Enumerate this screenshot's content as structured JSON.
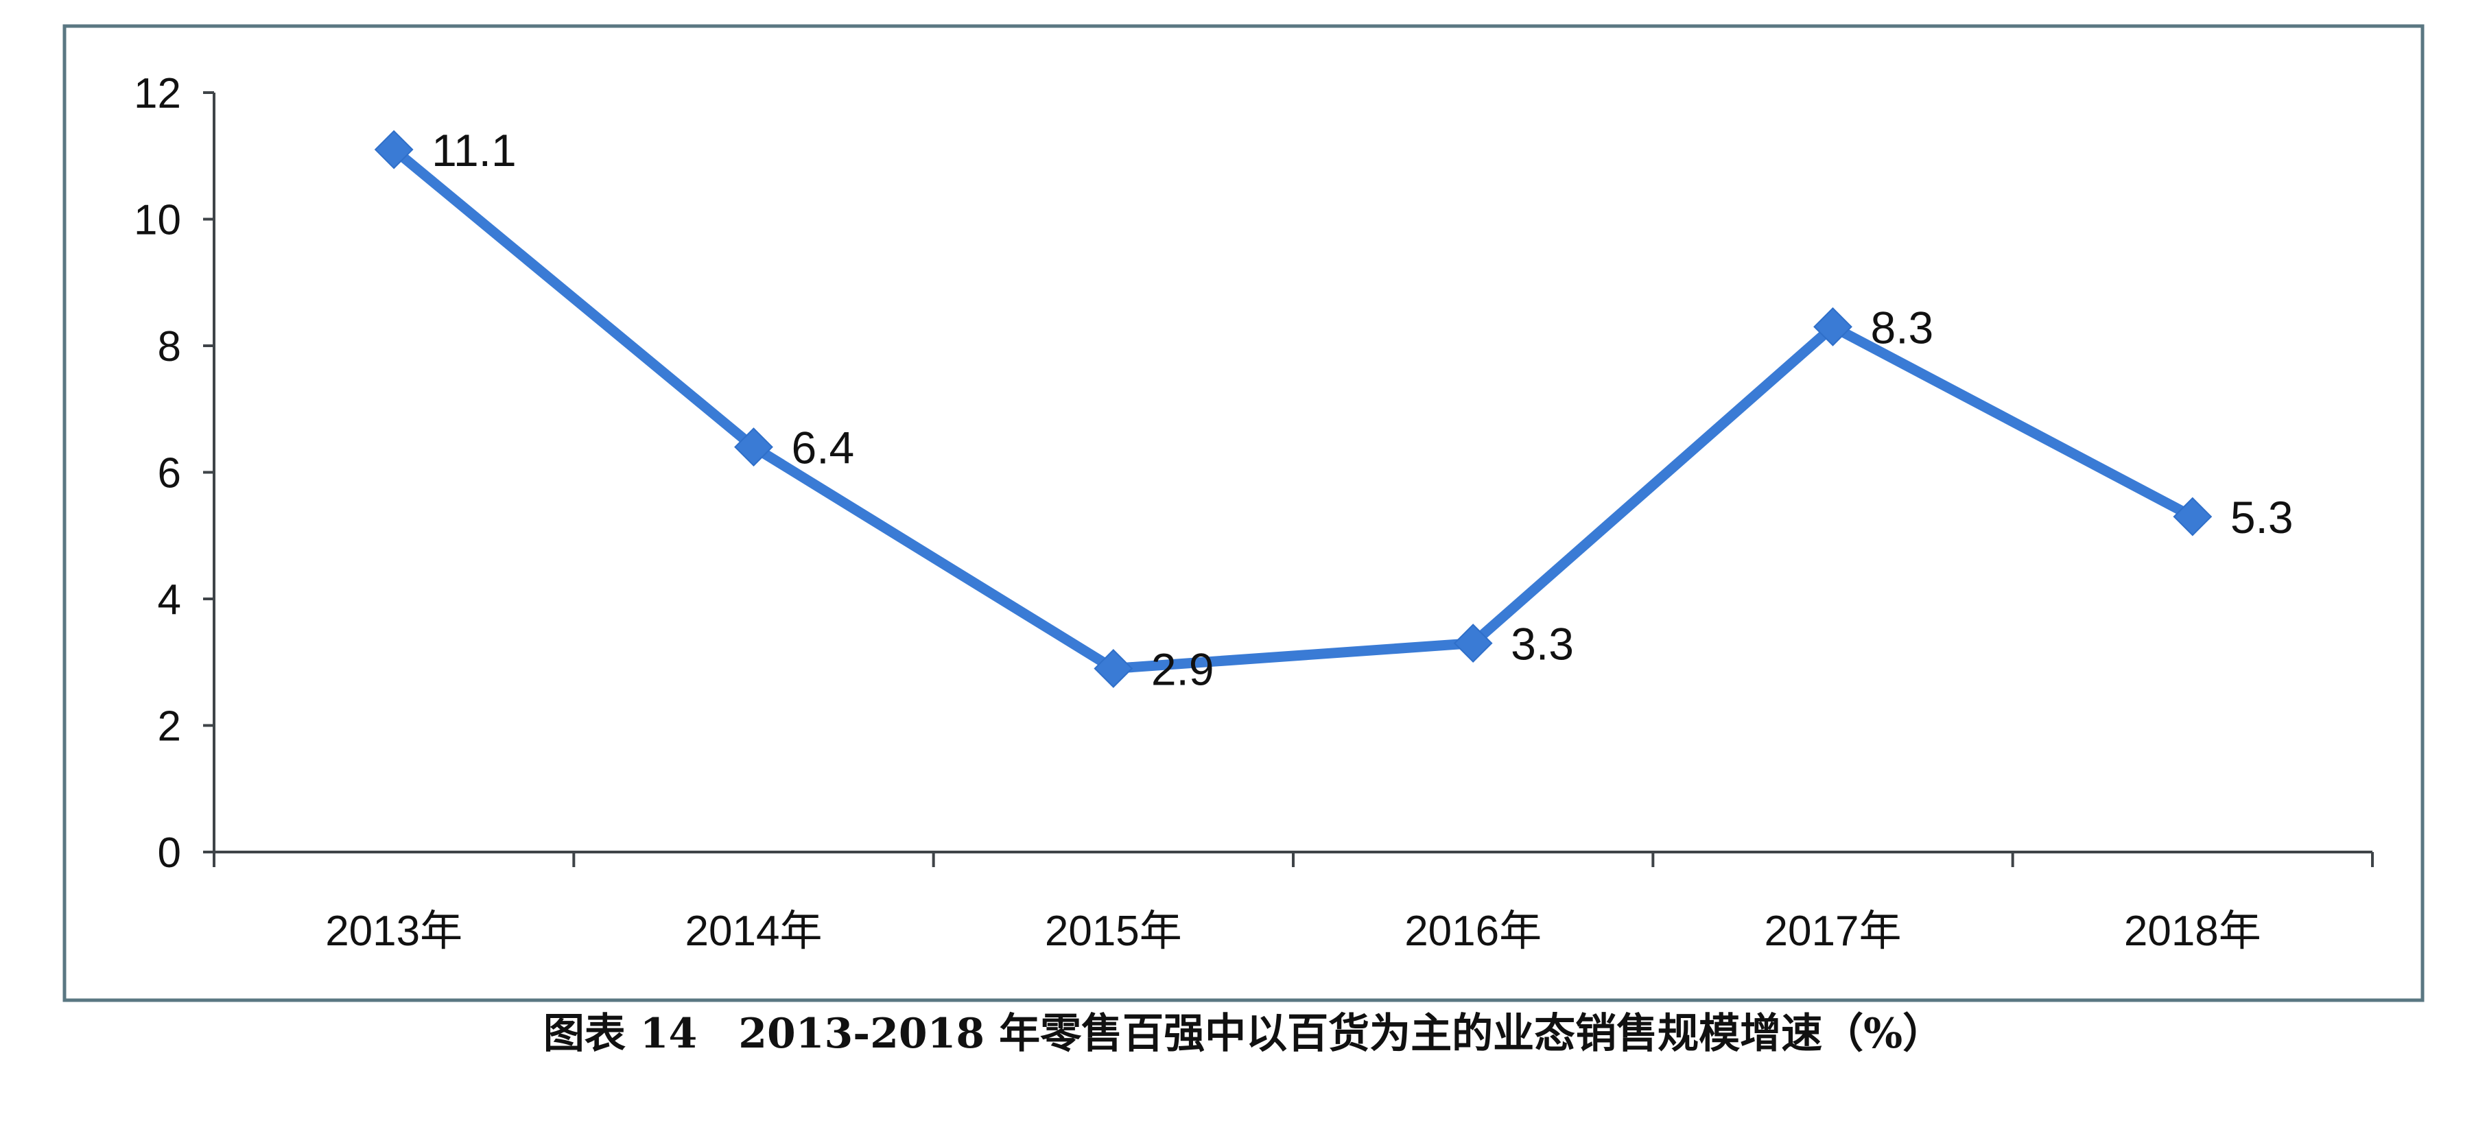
{
  "chart_data": {
    "type": "line",
    "categories": [
      "2013年",
      "2014年",
      "2015年",
      "2016年",
      "2017年",
      "2018年"
    ],
    "values": [
      11.1,
      6.4,
      2.9,
      3.3,
      8.3,
      5.3
    ],
    "data_labels": [
      "11.1",
      "6.4",
      "2.9",
      "3.3",
      "8.3",
      "5.3"
    ],
    "yticks": [
      "0",
      "2",
      "4",
      "6",
      "8",
      "10",
      "12"
    ],
    "ylim": [
      0,
      12
    ],
    "title": "",
    "xlabel": "",
    "ylabel": "",
    "grid": false,
    "legend": "none",
    "series_color": "#3a7bd5",
    "marker": "diamond"
  },
  "caption": "图表 14　2013-2018 年零售百强中以百货为主的业态销售规模增速（%）"
}
